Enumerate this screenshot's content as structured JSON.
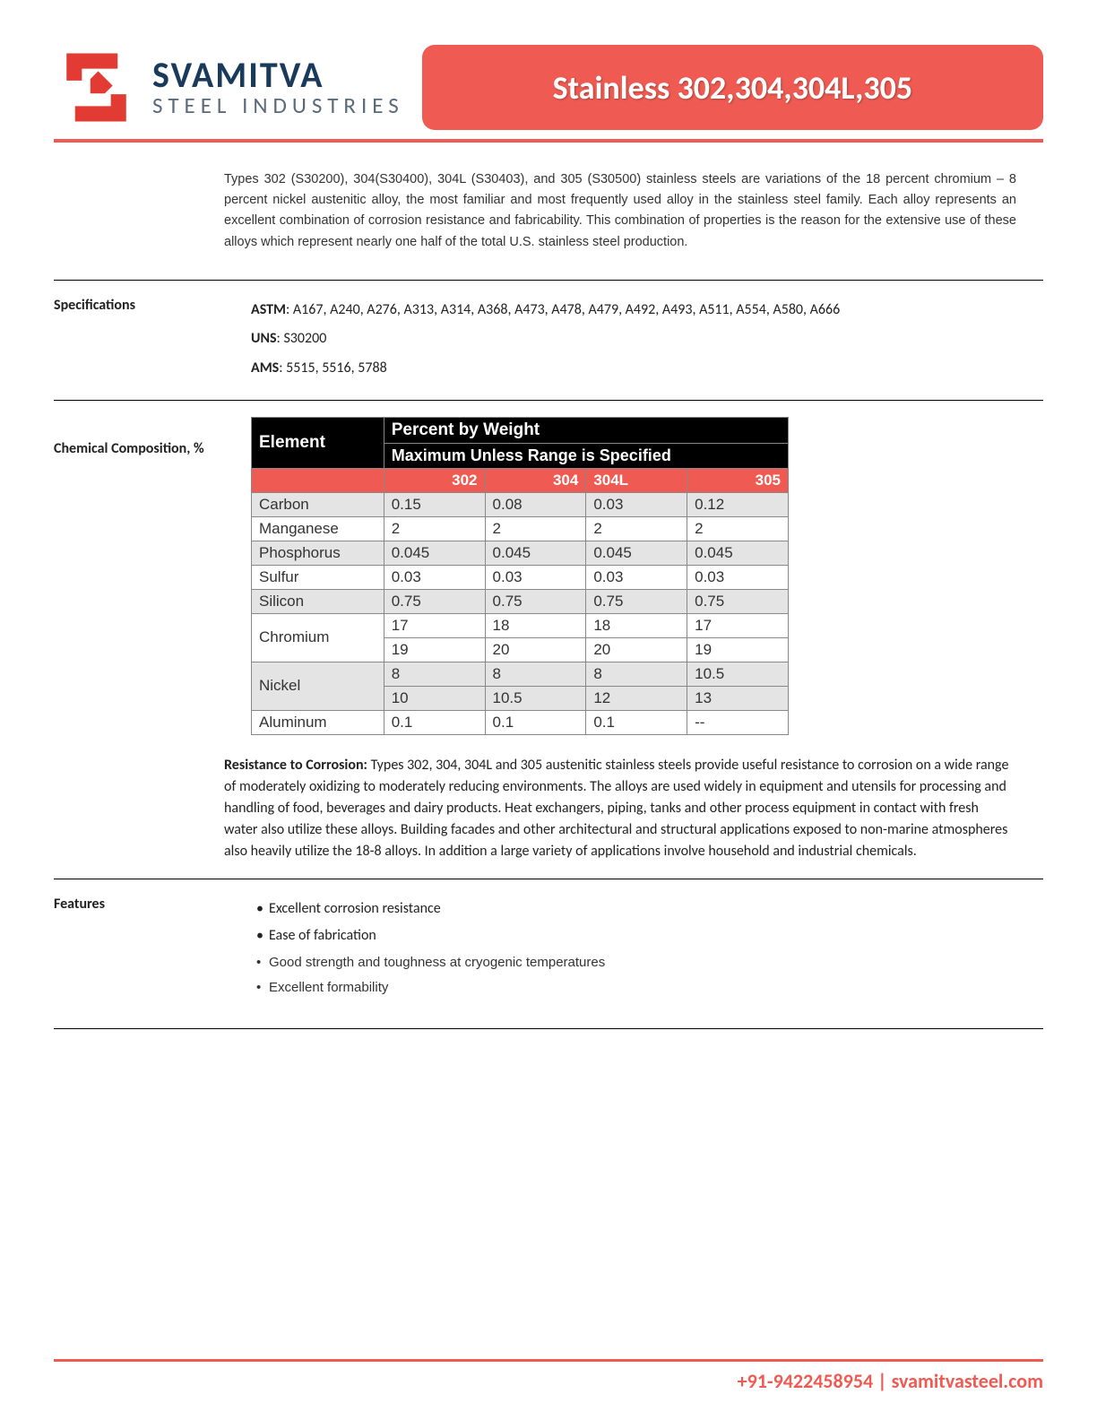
{
  "brand": {
    "company": "SVAMITVA",
    "subtitle": "STEEL INDUSTRIES",
    "logo_color": "#e13b33",
    "text_color": "#1a3a5c"
  },
  "page_title": "Stainless 302,304,304L,305",
  "intro_text": "Types 302 (S30200), 304(S30400), 304L (S30403), and 305 (S30500) stainless steels are variations of the 18 percent chromium – 8 percent nickel austenitic alloy, the most familiar and most frequently used alloy in the stainless steel family. Each alloy represents an excellent combination of corrosion resistance and fabricability. This combination of properties is the reason for the extensive use of these alloys which represent nearly one half of the total U.S. stainless steel production.",
  "specifications": {
    "label": "Specifications",
    "items": [
      {
        "key": "ASTM",
        "value": "A167, A240, A276, A313, A314, A368, A473, A478, A479, A492, A493, A511, A554, A580, A666"
      },
      {
        "key": "UNS",
        "value": "S30200"
      },
      {
        "key": "AMS",
        "value": "5515, 5516, 5788"
      }
    ]
  },
  "composition": {
    "label": "Chemical Composition, %",
    "header_element": "Element",
    "header_top": "Percent by Weight",
    "header_sub": "Maximum Unless Range is Specified",
    "columns": [
      "302",
      "304",
      "304L",
      "305"
    ],
    "col_align": [
      "r",
      "r",
      "l",
      "r"
    ],
    "rows": [
      {
        "element": "Carbon",
        "shade": "grey",
        "vals": [
          [
            "0.15"
          ],
          [
            "0.08"
          ],
          [
            "0.03"
          ],
          [
            "0.12"
          ]
        ]
      },
      {
        "element": "Manganese",
        "shade": "white",
        "vals": [
          [
            "2"
          ],
          [
            "2"
          ],
          [
            "2"
          ],
          [
            "2"
          ]
        ]
      },
      {
        "element": "Phosphorus",
        "shade": "grey",
        "vals": [
          [
            "0.045"
          ],
          [
            "0.045"
          ],
          [
            "0.045"
          ],
          [
            "0.045"
          ]
        ]
      },
      {
        "element": "Sulfur",
        "shade": "white",
        "vals": [
          [
            "0.03"
          ],
          [
            "0.03"
          ],
          [
            "0.03"
          ],
          [
            "0.03"
          ]
        ]
      },
      {
        "element": "Silicon",
        "shade": "grey",
        "vals": [
          [
            "0.75"
          ],
          [
            "0.75"
          ],
          [
            "0.75"
          ],
          [
            "0.75"
          ]
        ]
      },
      {
        "element": "Chromium",
        "shade": "white",
        "vals": [
          [
            "17",
            "19"
          ],
          [
            "18",
            "20"
          ],
          [
            "18",
            "20"
          ],
          [
            "17",
            "19"
          ]
        ]
      },
      {
        "element": "Nickel",
        "shade": "grey",
        "vals": [
          [
            "8",
            "10"
          ],
          [
            "8",
            "10.5"
          ],
          [
            "8",
            "12"
          ],
          [
            "10.5",
            "13"
          ]
        ]
      },
      {
        "element": "Aluminum",
        "shade": "white",
        "vals": [
          [
            "0.1"
          ],
          [
            "0.1"
          ],
          [
            "0.1"
          ],
          [
            "--"
          ]
        ]
      }
    ]
  },
  "corrosion": {
    "lead": "Resistance to Corrosion:",
    "text": "Types 302, 304, 304L and 305 austenitic stainless steels provide useful resistance to corrosion on a wide range of moderately oxidizing to moderately reducing environments. The alloys are used widely in equipment and utensils for processing and handling of food, beverages and dairy products. Heat exchangers, piping, tanks and other process equipment in contact with fresh water also utilize these alloys. Building facades and other architectural and structural applications exposed to non-marine atmospheres also heavily utilize the 18-8 alloys. In addition a large variety of applications involve household and industrial chemicals."
  },
  "features": {
    "label": "Features",
    "items": [
      {
        "text": "Excellent corrosion resistance",
        "alt": false
      },
      {
        "text": "Ease of fabrication",
        "alt": false
      },
      {
        "text": "Good strength and toughness at cryogenic temperatures",
        "alt": true
      },
      {
        "text": "Excellent formability",
        "alt": true
      }
    ]
  },
  "footer": {
    "phone": "+91-9422458954",
    "site": "svamitvasteel.com"
  },
  "colors": {
    "accent": "#ef5b52",
    "table_grey": "#e4e4e4"
  }
}
